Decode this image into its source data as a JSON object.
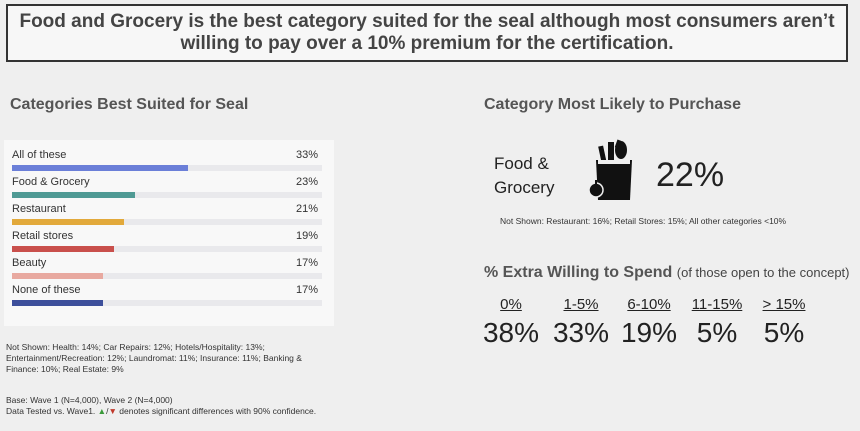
{
  "headline": "Food and Grocery is the best category suited for the seal although most consumers aren’t willing to pay over a 10% premium for the certification.",
  "left_title": "Categories Best Suited for Seal",
  "right_title": "Category Most Likely to Purchase",
  "left_not_shown": "Not Shown: Health: 14%; Car Repairs: 12%; Hotels/Hospitality: 13%; Entertainment/Recreation: 12%; Laundromat: 11%; Insurance: 11%; Banking & Finance: 10%; Real Estate: 9%",
  "base_line1": "Base: Wave 1 (N=4,000), Wave 2 (N=4,000)",
  "base_line2_prefix": "Data Tested vs. Wave1.",
  "base_line2_suffix": "denotes significant differences with 90% confidence.",
  "up_marker": "▲",
  "slash": "/",
  "down_marker": "▼",
  "most_likely": {
    "category_line1": "Food &",
    "category_line2": "Grocery",
    "value": "22%",
    "icon": "grocery-bag-icon",
    "not_shown": "Not Shown: Restaurant: 16%; Retail Stores: 15%; All other categories <10%"
  },
  "extra_spend": {
    "title": "% Extra Willing to Spend",
    "subtitle": "(of those open to the concept)",
    "columns": [
      {
        "label": "0%",
        "value": "38%"
      },
      {
        "label": "1-5%",
        "value": "33%"
      },
      {
        "label": "6-10%",
        "value": "19%"
      },
      {
        "label": "11-15%",
        "value": "5%"
      },
      {
        "label": "> 15%",
        "value": "5%"
      }
    ]
  },
  "chart_data": {
    "type": "bar",
    "orientation": "horizontal",
    "title": "Categories Best Suited for Seal",
    "categories": [
      "All of these",
      "Food & Grocery",
      "Restaurant",
      "Retail stores",
      "Beauty",
      "None of these"
    ],
    "values": [
      33,
      23,
      21,
      19,
      17,
      17
    ],
    "value_labels": [
      "33%",
      "23%",
      "21%",
      "19%",
      "17%",
      "17%"
    ],
    "colors": [
      "#6b7fd8",
      "#4f9a94",
      "#e2a93b",
      "#c9504c",
      "#e8a9a0",
      "#3d4f9b"
    ],
    "xlim": [
      0,
      58
    ],
    "grid": false
  }
}
